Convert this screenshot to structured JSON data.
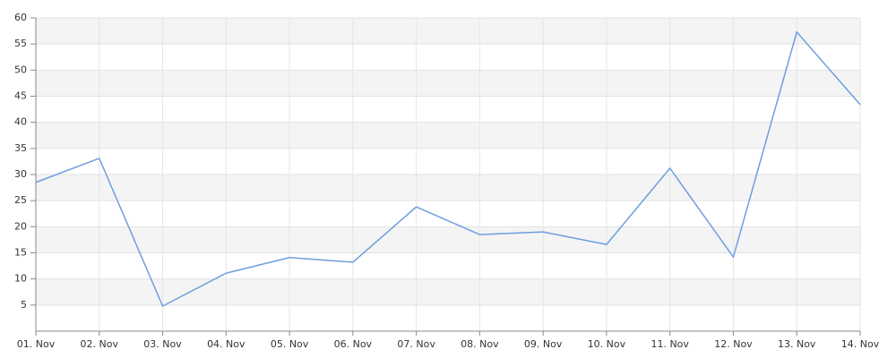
{
  "chart_data": {
    "type": "line",
    "categories": [
      "01. Nov",
      "02. Nov",
      "03. Nov",
      "04. Nov",
      "05. Nov",
      "06. Nov",
      "07. Nov",
      "08. Nov",
      "09. Nov",
      "10. Nov",
      "11. Nov",
      "12. Nov",
      "13. Nov",
      "14. Nov"
    ],
    "series": [
      {
        "color": "#6e9ee0",
        "values": [
          28.5,
          33.1,
          4.8,
          11.1,
          14.1,
          13.2,
          23.8,
          18.5,
          19.0,
          16.6,
          31.2,
          14.2,
          57.3,
          43.4
        ]
      }
    ],
    "ylim": [
      0,
      60
    ],
    "yticks": [
      5,
      10,
      15,
      20,
      25,
      30,
      35,
      40,
      45,
      50,
      55,
      60
    ],
    "grid": true
  }
}
